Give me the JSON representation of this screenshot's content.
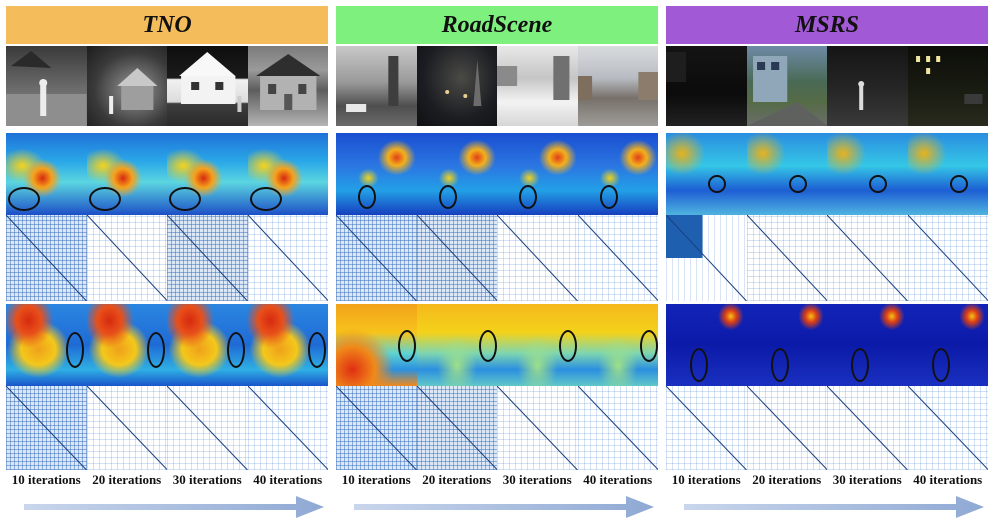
{
  "panels": [
    {
      "title": "TNO",
      "header_color": "#f5bc5c",
      "labels": [
        "10 iterations",
        "20 iterations",
        "30 iterations",
        "40 iterations"
      ]
    },
    {
      "title": "RoadScene",
      "header_color": "#7ef07e",
      "labels": [
        "10 iterations",
        "20 iterations",
        "30 iterations",
        "40 iterations"
      ]
    },
    {
      "title": "MSRS",
      "header_color": "#a259d6",
      "labels": [
        "10 iterations",
        "20 iterations",
        "30 iterations",
        "40 iterations"
      ]
    }
  ],
  "arrow_color": "#9fb6dc"
}
